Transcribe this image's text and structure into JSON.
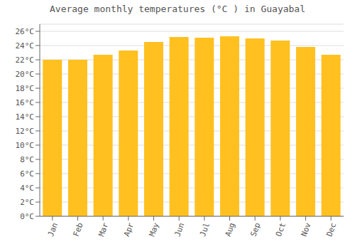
{
  "chart_data": {
    "type": "bar",
    "title": "Average monthly temperatures (°C ) in Guayabal",
    "categories": [
      "Jan",
      "Feb",
      "Mar",
      "Apr",
      "May",
      "Jun",
      "Jul",
      "Aug",
      "Sep",
      "Oct",
      "Nov",
      "Dec"
    ],
    "values": [
      22.0,
      22.0,
      22.7,
      23.3,
      24.5,
      25.2,
      25.1,
      25.3,
      25.0,
      24.7,
      23.8,
      22.7
    ],
    "color": "#FFC020",
    "ylim": [
      0,
      27
    ],
    "yticks": [
      {
        "value": 0,
        "label": "0°C"
      },
      {
        "value": 2,
        "label": "2°C"
      },
      {
        "value": 4,
        "label": "4°C"
      },
      {
        "value": 6,
        "label": "6°C"
      },
      {
        "value": 8,
        "label": "8°C"
      },
      {
        "value": 10,
        "label": "10°C"
      },
      {
        "value": 12,
        "label": "12°C"
      },
      {
        "value": 14,
        "label": "14°C"
      },
      {
        "value": 16,
        "label": "16°C"
      },
      {
        "value": 18,
        "label": "18°C"
      },
      {
        "value": 20,
        "label": "20°C"
      },
      {
        "value": 22,
        "label": "22°C"
      },
      {
        "value": 24,
        "label": "24°C"
      },
      {
        "value": 26,
        "label": "26°C"
      }
    ],
    "grid": true
  }
}
